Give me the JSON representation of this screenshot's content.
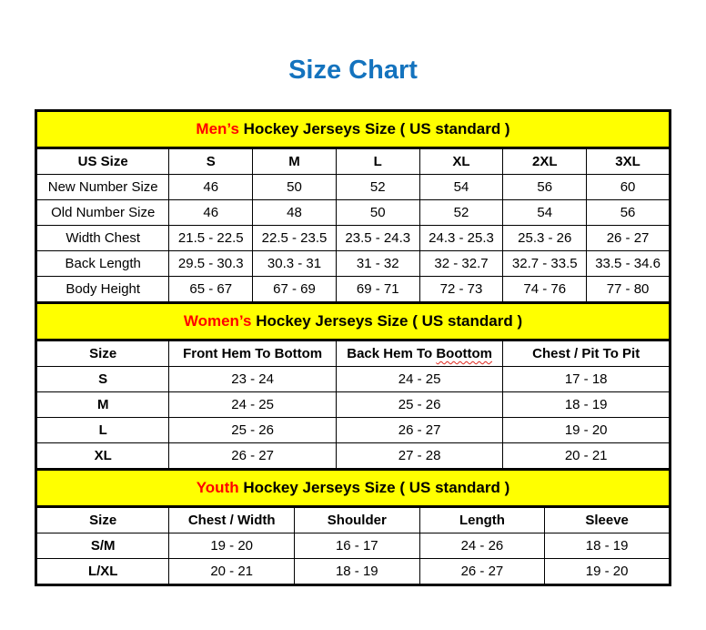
{
  "page": {
    "title": "Size Chart"
  },
  "colors": {
    "title_blue": "#1473BE",
    "section_heading_yellow": "#FFFF00",
    "heading_accent_red": "#FF0000",
    "spellcheck_squiggle_red": "#E0281E",
    "border_black": "#000000"
  },
  "sections": [
    {
      "id": "mens",
      "heading": {
        "highlight": "Men’s",
        "rest": " Hockey Jerseys Size ( US standard )"
      },
      "columns": [
        "US Size",
        "S",
        "M",
        "L",
        "XL",
        "2XL",
        "3XL"
      ],
      "bold_row_labels": false,
      "rows": [
        {
          "label": "New Number Size",
          "values": [
            "46",
            "50",
            "52",
            "54",
            "56",
            "60"
          ]
        },
        {
          "label": "Old Number Size",
          "values": [
            "46",
            "48",
            "50",
            "52",
            "54",
            "56"
          ]
        },
        {
          "label": "Width Chest",
          "values": [
            "21.5 - 22.5",
            "22.5 - 23.5",
            "23.5 - 24.3",
            "24.3 - 25.3",
            "25.3 - 26",
            "26 - 27"
          ]
        },
        {
          "label": "Back Length",
          "values": [
            "29.5 - 30.3",
            "30.3 - 31",
            "31 - 32",
            "32 - 32.7",
            "32.7 - 33.5",
            "33.5 - 34.6"
          ]
        },
        {
          "label": "Body Height",
          "values": [
            "65 - 67",
            "67 - 69",
            "69 - 71",
            "72 - 73",
            "74 - 76",
            "77 - 80"
          ]
        }
      ]
    },
    {
      "id": "womens",
      "heading": {
        "highlight": "Women’s",
        "rest": " Hockey Jerseys Size ( US standard )"
      },
      "columns": [
        "Size",
        "Front Hem To Bottom",
        "Back Hem To Boottom",
        "Chest / Pit To Pit"
      ],
      "spellcheck": {
        "column": 2,
        "word": "Boottom"
      },
      "bold_row_labels": true,
      "rows": [
        {
          "label": "S",
          "values": [
            "23 - 24",
            "24 - 25",
            "17 - 18"
          ]
        },
        {
          "label": "M",
          "values": [
            "24 - 25",
            "25 - 26",
            "18 - 19"
          ]
        },
        {
          "label": "L",
          "values": [
            "25 - 26",
            "26 - 27",
            "19 - 20"
          ]
        },
        {
          "label": "XL",
          "values": [
            "26 - 27",
            "27 - 28",
            "20 - 21"
          ]
        }
      ]
    },
    {
      "id": "youth",
      "heading": {
        "highlight": "Youth",
        "rest": " Hockey Jerseys Size ( US standard )"
      },
      "columns": [
        "Size",
        "Chest / Width",
        "Shoulder",
        "Length",
        "Sleeve"
      ],
      "bold_row_labels": true,
      "rows": [
        {
          "label": "S/M",
          "values": [
            "19 - 20",
            "16 - 17",
            "24 - 26",
            "18 - 19"
          ]
        },
        {
          "label": "L/XL",
          "values": [
            "20 - 21",
            "18 - 19",
            "26 - 27",
            "19 - 20"
          ]
        }
      ]
    }
  ]
}
